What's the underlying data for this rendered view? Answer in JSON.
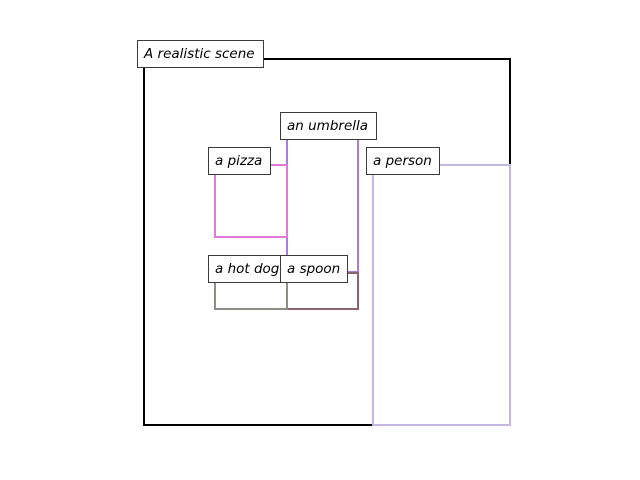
{
  "scene": {
    "caption": "A realistic scene",
    "frame_color": "#000000"
  },
  "objects": [
    {
      "id": "umbrella",
      "label": "an umbrella",
      "color": "#a87fd8"
    },
    {
      "id": "pizza",
      "label": "a pizza",
      "color": "#de7ad8"
    },
    {
      "id": "person",
      "label": "a person",
      "color": "#c4b8e2"
    },
    {
      "id": "hotdog",
      "label": "a hot dog",
      "color": "#8e8e86"
    },
    {
      "id": "spoon",
      "label": "a spoon",
      "color": "#8a6470"
    }
  ]
}
